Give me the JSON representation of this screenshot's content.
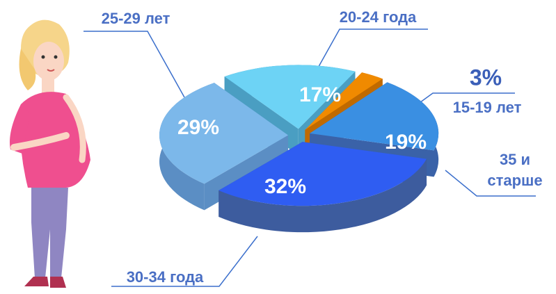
{
  "chart_data": {
    "type": "pie",
    "categories": [
      "20-24 года",
      "15-19 лет",
      "35 и старше",
      "30-34 года",
      "25-29 лет"
    ],
    "values": [
      17,
      3,
      19,
      32,
      29
    ],
    "value_labels": [
      "17%",
      "3%",
      "19%",
      "32%",
      "29%"
    ],
    "colors": [
      "#6dd3f5",
      "#f08a00",
      "#3a8fe2",
      "#2f5df2",
      "#7cb8ea"
    ],
    "side_colors": [
      "#4a9ec2",
      "#c06a00",
      "#3a62a8",
      "#3d5c9e",
      "#5b8ec4"
    ]
  }
}
